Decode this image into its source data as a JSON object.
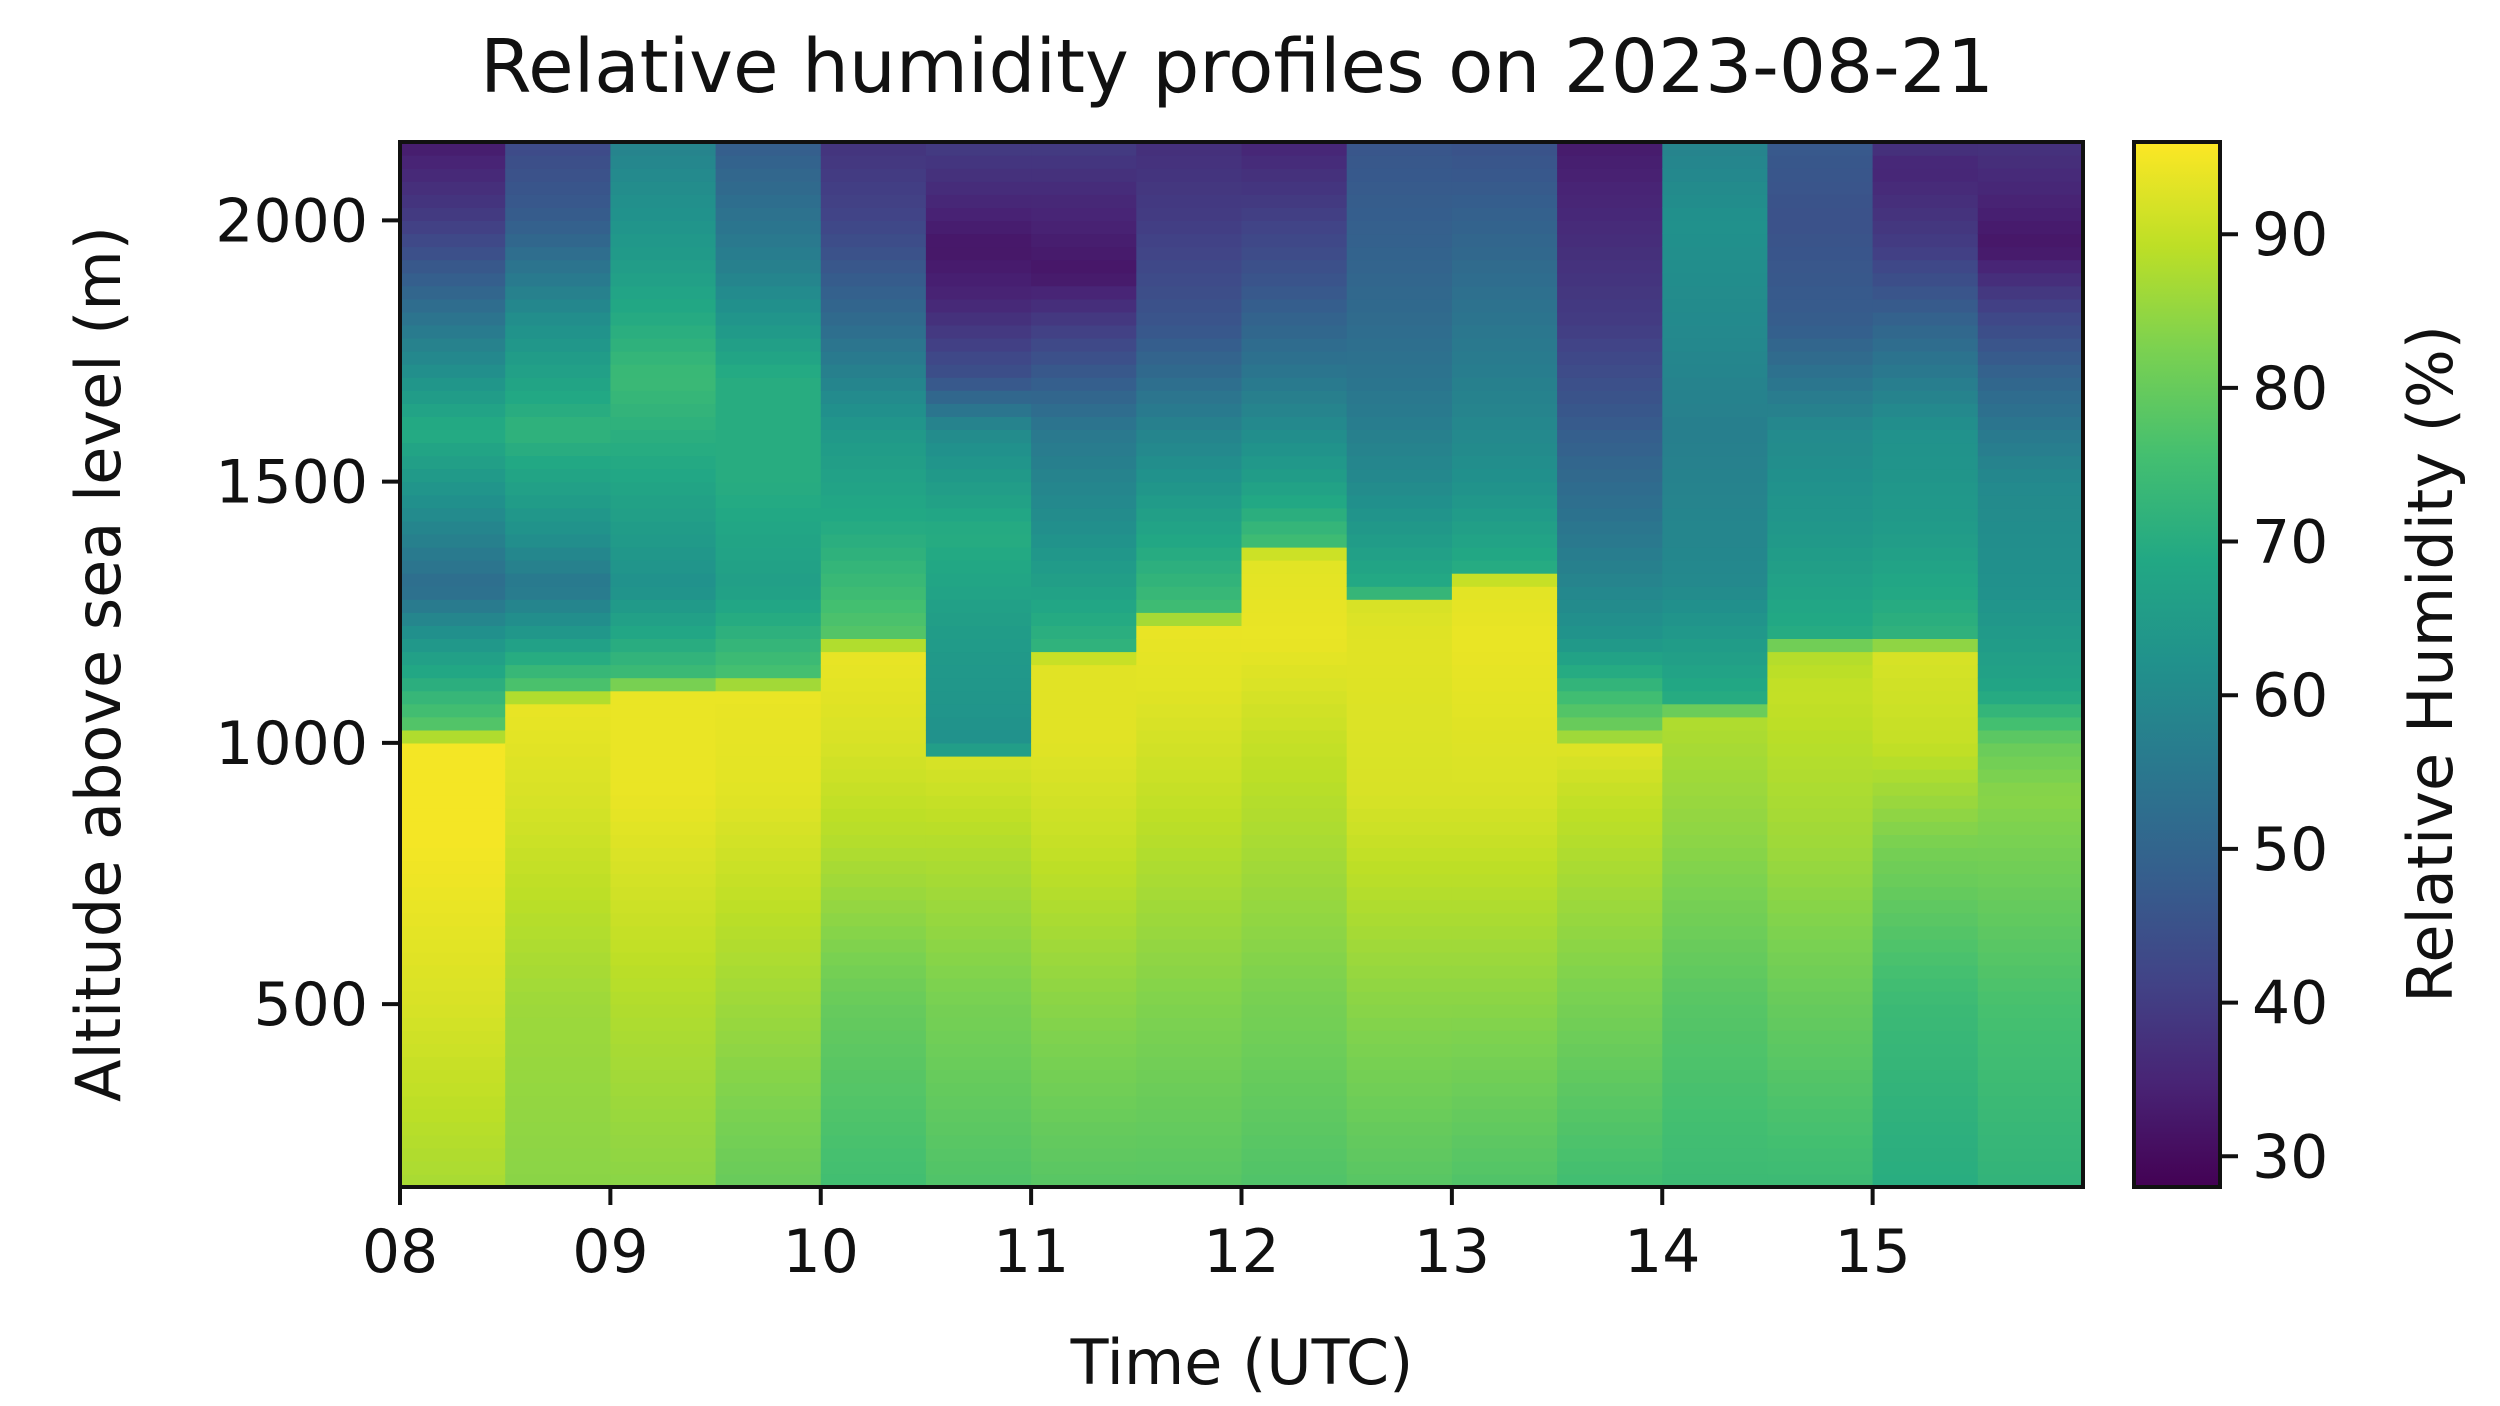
{
  "chart_data": {
    "type": "heatmap",
    "title": "Relative humidity profiles on 2023-08-21",
    "xlabel": "Time (UTC)",
    "ylabel": "Altitude above sea level (m)",
    "colorbar_label": "Relative Humidity (%)",
    "colormap": "viridis",
    "x_ticks": [
      "08",
      "09",
      "10",
      "11",
      "12",
      "13",
      "14",
      "15"
    ],
    "y_ticks": [
      500,
      1000,
      1500,
      2000
    ],
    "colorbar_ticks": [
      30,
      40,
      50,
      60,
      70,
      80,
      90
    ],
    "xlim": [
      "08:00",
      "16:00"
    ],
    "ylim": [
      150,
      2150
    ],
    "color_range": [
      28,
      96
    ],
    "grid": false,
    "profiles": [
      {
        "time": "08:00",
        "values": [
          [
            150,
            87
          ],
          [
            500,
            92
          ],
          [
            800,
            95
          ],
          [
            1000,
            95
          ],
          [
            1030,
            78
          ],
          [
            1200,
            63
          ],
          [
            1300,
            52
          ],
          [
            1400,
            58
          ],
          [
            1600,
            70
          ],
          [
            1800,
            55
          ],
          [
            2000,
            40
          ],
          [
            2150,
            33
          ]
        ]
      },
      {
        "time": "08:30",
        "values": [
          [
            150,
            84
          ],
          [
            500,
            86
          ],
          [
            900,
            92
          ],
          [
            1080,
            94
          ],
          [
            1100,
            78
          ],
          [
            1200,
            65
          ],
          [
            1300,
            55
          ],
          [
            1400,
            62
          ],
          [
            1600,
            72
          ],
          [
            1800,
            62
          ],
          [
            2000,
            48
          ],
          [
            2150,
            43
          ]
        ]
      },
      {
        "time": "09:00",
        "values": [
          [
            150,
            84
          ],
          [
            500,
            88
          ],
          [
            900,
            94
          ],
          [
            1100,
            94
          ],
          [
            1120,
            75
          ],
          [
            1300,
            62
          ],
          [
            1500,
            68
          ],
          [
            1700,
            74
          ],
          [
            1900,
            66
          ],
          [
            2150,
            58
          ]
        ]
      },
      {
        "time": "09:30",
        "values": [
          [
            150,
            80
          ],
          [
            500,
            86
          ],
          [
            900,
            93
          ],
          [
            1100,
            94
          ],
          [
            1130,
            76
          ],
          [
            1300,
            66
          ],
          [
            1500,
            70
          ],
          [
            1700,
            70
          ],
          [
            1900,
            58
          ],
          [
            2150,
            48
          ]
        ]
      },
      {
        "time": "10:00",
        "values": [
          [
            150,
            75
          ],
          [
            500,
            80
          ],
          [
            800,
            88
          ],
          [
            1000,
            92
          ],
          [
            1180,
            94
          ],
          [
            1200,
            78
          ],
          [
            1400,
            70
          ],
          [
            1600,
            64
          ],
          [
            1800,
            52
          ],
          [
            2000,
            42
          ],
          [
            2150,
            38
          ]
        ]
      },
      {
        "time": "10:30",
        "values": [
          [
            150,
            77
          ],
          [
            500,
            82
          ],
          [
            800,
            88
          ],
          [
            970,
            92
          ],
          [
            990,
            62
          ],
          [
            1200,
            65
          ],
          [
            1400,
            70
          ],
          [
            1600,
            60
          ],
          [
            1700,
            45
          ],
          [
            1850,
            35
          ],
          [
            1950,
            32
          ],
          [
            2150,
            40
          ]
        ]
      },
      {
        "time": "11:00",
        "values": [
          [
            150,
            78
          ],
          [
            500,
            84
          ],
          [
            800,
            90
          ],
          [
            1000,
            93
          ],
          [
            1160,
            93
          ],
          [
            1180,
            72
          ],
          [
            1400,
            62
          ],
          [
            1600,
            55
          ],
          [
            1800,
            40
          ],
          [
            1900,
            32
          ],
          [
            2050,
            36
          ],
          [
            2150,
            40
          ]
        ]
      },
      {
        "time": "11:30",
        "values": [
          [
            150,
            78
          ],
          [
            500,
            83
          ],
          [
            900,
            90
          ],
          [
            1100,
            93
          ],
          [
            1230,
            94
          ],
          [
            1250,
            75
          ],
          [
            1400,
            68
          ],
          [
            1600,
            58
          ],
          [
            1800,
            46
          ],
          [
            2000,
            40
          ],
          [
            2150,
            37
          ]
        ]
      },
      {
        "time": "12:00",
        "values": [
          [
            150,
            77
          ],
          [
            500,
            82
          ],
          [
            800,
            87
          ],
          [
            1000,
            90
          ],
          [
            1200,
            94
          ],
          [
            1360,
            93
          ],
          [
            1380,
            75
          ],
          [
            1500,
            66
          ],
          [
            1700,
            55
          ],
          [
            1900,
            45
          ],
          [
            2150,
            35
          ]
        ]
      },
      {
        "time": "12:30",
        "values": [
          [
            150,
            78
          ],
          [
            500,
            84
          ],
          [
            900,
            92
          ],
          [
            1200,
            93
          ],
          [
            1270,
            92
          ],
          [
            1290,
            70
          ],
          [
            1500,
            60
          ],
          [
            1700,
            54
          ],
          [
            1900,
            50
          ],
          [
            2150,
            46
          ]
        ]
      },
      {
        "time": "13:00",
        "values": [
          [
            150,
            77
          ],
          [
            500,
            84
          ],
          [
            900,
            92
          ],
          [
            1200,
            94
          ],
          [
            1310,
            93
          ],
          [
            1330,
            70
          ],
          [
            1500,
            62
          ],
          [
            1700,
            57
          ],
          [
            1900,
            52
          ],
          [
            2150,
            45
          ]
        ]
      },
      {
        "time": "13:30",
        "values": [
          [
            150,
            75
          ],
          [
            500,
            82
          ],
          [
            900,
            90
          ],
          [
            1000,
            93
          ],
          [
            1020,
            82
          ],
          [
            1200,
            63
          ],
          [
            1400,
            55
          ],
          [
            1600,
            48
          ],
          [
            1800,
            40
          ],
          [
            2000,
            36
          ],
          [
            2150,
            33
          ]
        ]
      },
      {
        "time": "14:00",
        "values": [
          [
            150,
            74
          ],
          [
            500,
            78
          ],
          [
            800,
            84
          ],
          [
            1050,
            88
          ],
          [
            1080,
            70
          ],
          [
            1300,
            60
          ],
          [
            1600,
            57
          ],
          [
            1800,
            60
          ],
          [
            2000,
            62
          ],
          [
            2150,
            58
          ]
        ]
      },
      {
        "time": "14:30",
        "values": [
          [
            150,
            74
          ],
          [
            500,
            80
          ],
          [
            800,
            86
          ],
          [
            1100,
            90
          ],
          [
            1180,
            88
          ],
          [
            1200,
            70
          ],
          [
            1400,
            64
          ],
          [
            1600,
            60
          ],
          [
            1800,
            48
          ],
          [
            2000,
            45
          ],
          [
            2150,
            47
          ]
        ]
      },
      {
        "time": "15:00",
        "values": [
          [
            150,
            70
          ],
          [
            500,
            74
          ],
          [
            800,
            82
          ],
          [
            1000,
            90
          ],
          [
            1180,
            92
          ],
          [
            1200,
            72
          ],
          [
            1400,
            65
          ],
          [
            1600,
            62
          ],
          [
            1800,
            50
          ],
          [
            1950,
            40
          ],
          [
            2100,
            35
          ],
          [
            2150,
            38
          ]
        ]
      },
      {
        "time": "15:30",
        "values": [
          [
            150,
            72
          ],
          [
            500,
            76
          ],
          [
            900,
            84
          ],
          [
            1000,
            80
          ],
          [
            1100,
            68
          ],
          [
            1300,
            62
          ],
          [
            1500,
            60
          ],
          [
            1700,
            50
          ],
          [
            1850,
            40
          ],
          [
            1950,
            32
          ],
          [
            2150,
            38
          ]
        ]
      }
    ]
  }
}
